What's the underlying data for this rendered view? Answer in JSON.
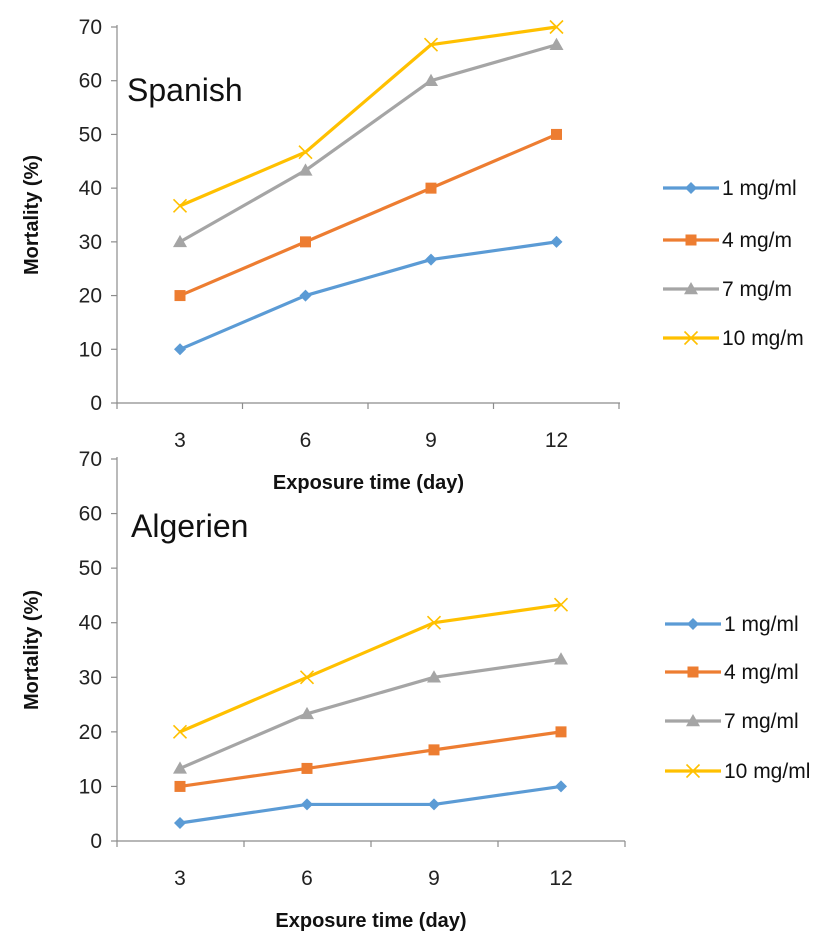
{
  "chart_data": [
    {
      "type": "line",
      "title": "Spanish",
      "xlabel": "Exposure time (day)",
      "ylabel": "Mortality (%)",
      "categories": [
        "3",
        "6",
        "9",
        "12"
      ],
      "ylim": [
        0,
        70
      ],
      "yticks": [
        0,
        10,
        20,
        30,
        40,
        50,
        60,
        70
      ],
      "grid": false,
      "legend_position": "right",
      "series": [
        {
          "name": "1 mg/ml",
          "values": [
            10,
            20,
            26.7,
            30
          ],
          "color": "#5b9bd5",
          "marker": "diamond"
        },
        {
          "name": "4 mg/m",
          "values": [
            20,
            30,
            40,
            50
          ],
          "color": "#ed7d31",
          "marker": "square"
        },
        {
          "name": "7 mg/m",
          "values": [
            30,
            43.3,
            60,
            66.7
          ],
          "color": "#a5a5a5",
          "marker": "triangle"
        },
        {
          "name": "10 mg/m",
          "values": [
            36.7,
            46.7,
            66.7,
            70
          ],
          "color": "#ffc000",
          "marker": "x"
        }
      ]
    },
    {
      "type": "line",
      "title": "Algerien",
      "xlabel": "Exposure time (day)",
      "ylabel": "Mortality (%)",
      "categories": [
        "3",
        "6",
        "9",
        "12"
      ],
      "ylim": [
        0,
        70
      ],
      "yticks": [
        0,
        10,
        20,
        30,
        40,
        50,
        60,
        70
      ],
      "grid": false,
      "legend_position": "right",
      "series": [
        {
          "name": "1 mg/ml",
          "values": [
            3.3,
            6.7,
            6.7,
            10
          ],
          "color": "#5b9bd5",
          "marker": "diamond"
        },
        {
          "name": "4 mg/ml",
          "values": [
            10,
            13.3,
            16.7,
            20
          ],
          "color": "#ed7d31",
          "marker": "square"
        },
        {
          "name": "7 mg/ml",
          "values": [
            13.3,
            23.3,
            30,
            33.3
          ],
          "color": "#a5a5a5",
          "marker": "triangle"
        },
        {
          "name": "10 mg/ml",
          "values": [
            20,
            30,
            40,
            43.3
          ],
          "color": "#ffc000",
          "marker": "x"
        }
      ]
    }
  ]
}
